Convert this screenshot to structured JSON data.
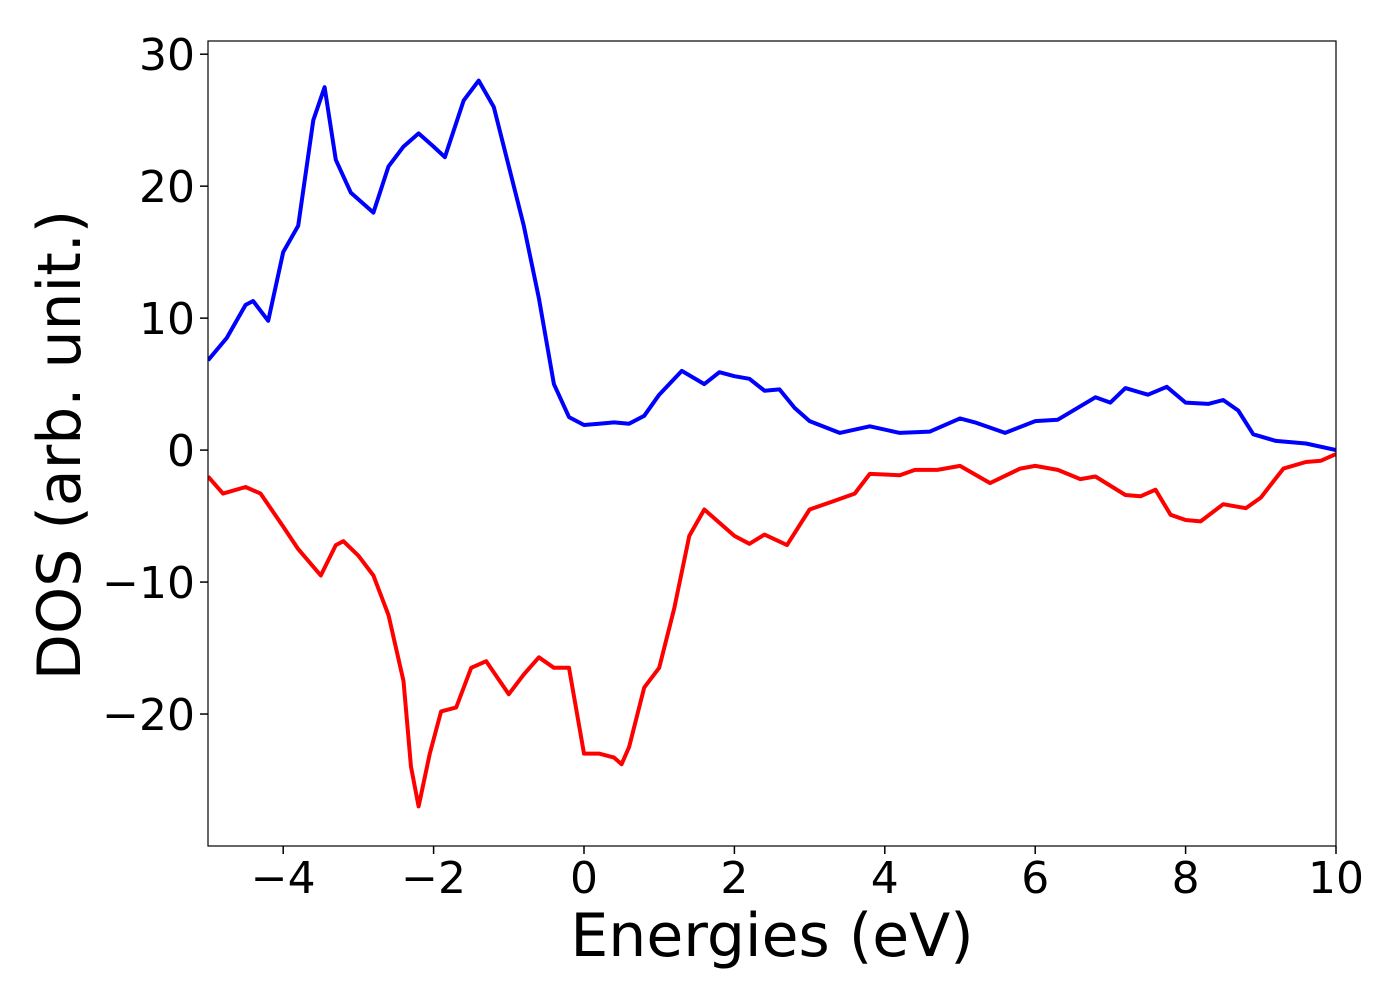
{
  "chart_data": {
    "type": "line",
    "xlabel": "Energies (eV)",
    "ylabel": "DOS (arb. unit.)",
    "xlim": [
      -5,
      10
    ],
    "xticks": [
      {
        "value": -4,
        "label": "−4"
      },
      {
        "value": -2,
        "label": "−2"
      },
      0,
      2,
      4,
      6,
      8,
      10
    ],
    "ylim": [
      -30,
      31
    ],
    "yticks": [
      {
        "value": -20,
        "label": "−20"
      },
      {
        "value": -10,
        "label": "−10"
      },
      0,
      10,
      20,
      30
    ],
    "grid": false,
    "series": [
      {
        "color": "#0000ff",
        "x": [
          -5,
          -4.75,
          -4.5,
          -4.4,
          -4.2,
          -4.0,
          -3.8,
          -3.6,
          -3.45,
          -3.3,
          -3.1,
          -2.8,
          -2.6,
          -2.4,
          -2.2,
          -2.0,
          -1.85,
          -1.6,
          -1.4,
          -1.2,
          -1.0,
          -0.8,
          -0.6,
          -0.4,
          -0.2,
          0,
          0.2,
          0.4,
          0.6,
          0.8,
          1.0,
          1.3,
          1.6,
          1.8,
          2.0,
          2.2,
          2.4,
          2.6,
          2.8,
          3.0,
          3.4,
          3.8,
          4.2,
          4.6,
          5.0,
          5.2,
          5.6,
          6.0,
          6.3,
          6.8,
          7.0,
          7.2,
          7.5,
          7.75,
          8.0,
          8.3,
          8.5,
          8.7,
          8.9,
          9.2,
          9.6,
          10
        ],
        "values": [
          6.8,
          8.5,
          11,
          11.3,
          9.8,
          15,
          17,
          25,
          27.5,
          22,
          19.5,
          18,
          21.5,
          23,
          24,
          23,
          22.2,
          26.5,
          28,
          26,
          21.5,
          17,
          11.5,
          5,
          2.5,
          1.9,
          2,
          2.1,
          2,
          2.6,
          4.2,
          6,
          5,
          5.9,
          5.6,
          5.4,
          4.5,
          4.6,
          3.2,
          2.2,
          1.3,
          1.8,
          1.3,
          1.4,
          2.4,
          2.1,
          1.3,
          2.2,
          2.3,
          4,
          3.6,
          4.7,
          4.2,
          4.8,
          3.6,
          3.5,
          3.8,
          3,
          1.2,
          0.7,
          0.5,
          0
        ]
      },
      {
        "color": "#ff0000",
        "x": [
          -5,
          -4.8,
          -4.5,
          -4.3,
          -4.0,
          -3.8,
          -3.5,
          -3.3,
          -3.2,
          -3.0,
          -2.8,
          -2.6,
          -2.4,
          -2.3,
          -2.2,
          -2.05,
          -1.9,
          -1.7,
          -1.5,
          -1.3,
          -1.0,
          -0.8,
          -0.6,
          -0.4,
          -0.2,
          0.0,
          0.2,
          0.4,
          0.5,
          0.6,
          0.8,
          1.0,
          1.2,
          1.4,
          1.6,
          1.8,
          2.0,
          2.2,
          2.4,
          2.7,
          3.0,
          3.3,
          3.6,
          3.8,
          4.2,
          4.4,
          4.7,
          5.0,
          5.4,
          5.8,
          6.0,
          6.3,
          6.6,
          6.8,
          7.2,
          7.4,
          7.6,
          7.8,
          8.0,
          8.2,
          8.5,
          8.8,
          9.0,
          9.3,
          9.6,
          9.8,
          10
        ],
        "values": [
          -2,
          -3.3,
          -2.8,
          -3.3,
          -5.8,
          -7.5,
          -9.5,
          -7.2,
          -6.9,
          -8,
          -9.5,
          -12.5,
          -17.5,
          -24,
          -27,
          -23,
          -19.8,
          -19.5,
          -16.5,
          -16,
          -18.5,
          -17,
          -15.7,
          -16.5,
          -16.5,
          -23,
          -23,
          -23.3,
          -23.8,
          -22.5,
          -18,
          -16.5,
          -12,
          -6.5,
          -4.5,
          -5.5,
          -6.5,
          -7.1,
          -6.4,
          -7.2,
          -4.5,
          -3.9,
          -3.3,
          -1.8,
          -1.9,
          -1.5,
          -1.5,
          -1.2,
          -2.5,
          -1.4,
          -1.2,
          -1.5,
          -2.2,
          -2,
          -3.4,
          -3.5,
          -3,
          -4.9,
          -5.3,
          -5.4,
          -4.1,
          -4.4,
          -3.6,
          -1.4,
          -0.9,
          -0.8,
          -0.3
        ]
      }
    ]
  }
}
